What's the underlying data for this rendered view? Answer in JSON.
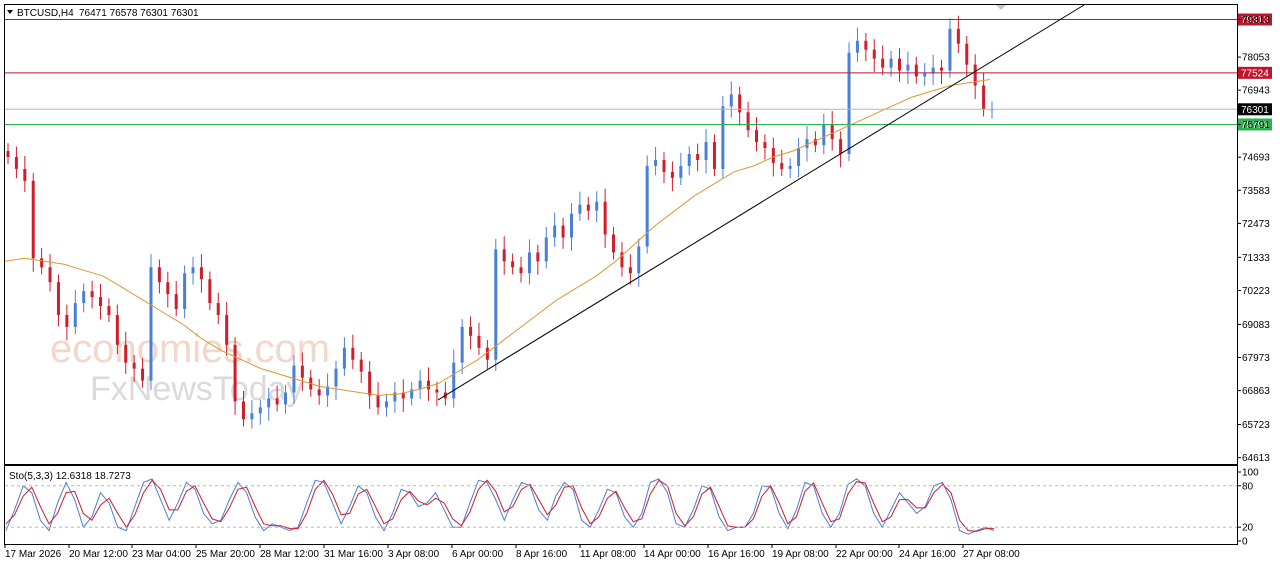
{
  "header": {
    "symbol": "BTCUSD,H4",
    "ohlc": "76471 76578 76301 76301",
    "stoch": "Sto(5,3,3) 12.6318 18.7273"
  },
  "watermark": {
    "line1": "economies.com",
    "line2": "FxNewsToday"
  },
  "colors": {
    "bull": "#4a7fd6",
    "bear": "#d01c2b",
    "ma": "#d99a2e",
    "resistance": "#c0142c",
    "support": "#2bb24c",
    "trend": "#000000",
    "stoch_main": "#4a7fd6",
    "stoch_signal": "#d01c2b"
  },
  "chart_data": [
    {
      "type": "line",
      "title": "BTCUSD,H4",
      "y_ticks": [
        79313,
        78053,
        76943,
        75791,
        74693,
        73583,
        72473,
        71333,
        70223,
        69083,
        67973,
        66863,
        65723,
        64613
      ],
      "price_labels": [
        {
          "value": 79313,
          "text": "79313",
          "kind": "resistance"
        },
        {
          "value": 77524,
          "text": "77524",
          "kind": "resistance"
        },
        {
          "value": 76301,
          "text": "76301",
          "kind": "current"
        },
        {
          "value": 75791,
          "text": "75791",
          "kind": "support"
        }
      ],
      "x_ticks": [
        "17 Mar 2026",
        "20 Mar 12:00",
        "23 Mar 04:00",
        "25 Mar 20:00",
        "28 Mar 12:00",
        "31 Mar 16:00",
        "3 Apr 08:00",
        "6 Apr 00:00",
        "8 Apr 16:00",
        "11 Apr 08:00",
        "14 Apr 00:00",
        "16 Apr 16:00",
        "19 Apr 08:00",
        "22 Apr 00:00",
        "24 Apr 16:00",
        "27 Apr 08:00"
      ],
      "ylim": [
        64400,
        79800
      ],
      "trendline": {
        "from": {
          "date": "3 Apr 20:00",
          "price": 66550
        },
        "to": {
          "date": "28 Apr 20:00",
          "price": 79800
        }
      },
      "close_path": [
        74700,
        74300,
        73900,
        71300,
        71000,
        70500,
        69400,
        69000,
        69800,
        70200,
        70000,
        69700,
        69400,
        68400,
        67800,
        67600,
        67200,
        71000,
        70500,
        70100,
        69600,
        70800,
        71000,
        70600,
        69800,
        69400,
        68400,
        66500,
        65900,
        66100,
        66300,
        66600,
        66400,
        66800,
        67700,
        67300,
        66900,
        66700,
        67000,
        67600,
        68300,
        67900,
        67500,
        66700,
        66300,
        66500,
        66800,
        66600,
        66900,
        67200,
        66900,
        66800,
        66600,
        67800,
        69000,
        68700,
        68300,
        67900,
        71600,
        71200,
        71000,
        70800,
        71500,
        71200,
        72000,
        72400,
        72000,
        72800,
        73100,
        72900,
        73200,
        72100,
        71500,
        71000,
        70800,
        71700,
        74400,
        74600,
        74200,
        74000,
        74400,
        74800,
        74600,
        75200,
        74300,
        76400,
        76800,
        76200,
        75600,
        75200,
        75000,
        74500,
        74300,
        74400,
        75000,
        75300,
        75100,
        75800,
        75300,
        74800,
        78200,
        78600,
        78300,
        78000,
        77700,
        78000,
        77600,
        77800,
        77400,
        77500,
        77700,
        77600,
        79000,
        78500,
        77800,
        77100,
        76300,
        76301
      ],
      "ma_path": [
        71200,
        71300,
        71200,
        71100,
        70900,
        70700,
        70300,
        69900,
        69500,
        69100,
        68600,
        68200,
        67900,
        67600,
        67400,
        67200,
        67000,
        66900,
        66800,
        66700,
        66750,
        66900,
        67100,
        67500,
        67900,
        68400,
        68900,
        69400,
        69900,
        70300,
        70700,
        71200,
        71800,
        72400,
        72900,
        73400,
        73800,
        74200,
        74400,
        74700,
        74900,
        75200,
        75500,
        75800,
        76100,
        76400,
        76700,
        76900,
        77100,
        77200,
        77300
      ]
    },
    {
      "type": "line",
      "title": "Sto(5,3,3) 12.6318 18.7273",
      "y_ticks": [
        100,
        80,
        20,
        0
      ],
      "ylim": [
        0,
        100
      ],
      "series": [
        {
          "name": "main",
          "values": [
            15,
            45,
            80,
            70,
            30,
            15,
            55,
            85,
            60,
            20,
            35,
            70,
            55,
            20,
            15,
            50,
            85,
            90,
            60,
            30,
            55,
            85,
            75,
            40,
            25,
            30,
            60,
            85,
            70,
            35,
            15,
            25,
            20,
            15,
            20,
            55,
            88,
            85,
            55,
            25,
            50,
            80,
            70,
            35,
            15,
            40,
            75,
            70,
            50,
            55,
            70,
            45,
            20,
            20,
            55,
            88,
            85,
            60,
            30,
            60,
            85,
            80,
            45,
            30,
            65,
            85,
            75,
            30,
            20,
            45,
            75,
            70,
            35,
            20,
            40,
            85,
            90,
            70,
            25,
            20,
            45,
            80,
            75,
            35,
            15,
            20,
            20,
            40,
            80,
            78,
            40,
            18,
            45,
            85,
            80,
            40,
            20,
            40,
            82,
            90,
            80,
            40,
            20,
            45,
            70,
            55,
            40,
            50,
            80,
            85,
            60,
            15,
            10,
            15,
            20,
            15
          ]
        },
        {
          "name": "signal",
          "values": [
            25,
            38,
            65,
            78,
            50,
            25,
            40,
            70,
            72,
            40,
            30,
            52,
            62,
            40,
            20,
            38,
            70,
            88,
            75,
            45,
            45,
            72,
            80,
            55,
            32,
            28,
            48,
            75,
            78,
            50,
            25,
            22,
            22,
            18,
            18,
            40,
            75,
            88,
            68,
            38,
            40,
            68,
            75,
            50,
            25,
            32,
            60,
            72,
            58,
            52,
            62,
            55,
            32,
            22,
            42,
            75,
            88,
            72,
            42,
            50,
            75,
            82,
            60,
            38,
            52,
            78,
            80,
            48,
            25,
            35,
            62,
            72,
            48,
            28,
            32,
            68,
            88,
            80,
            40,
            22,
            35,
            68,
            78,
            50,
            22,
            20,
            20,
            32,
            65,
            80,
            55,
            25,
            35,
            72,
            84,
            55,
            28,
            32,
            68,
            86,
            84,
            55,
            28,
            35,
            60,
            60,
            48,
            48,
            70,
            82,
            70,
            30,
            15,
            14,
            18,
            18
          ]
        }
      ]
    }
  ]
}
